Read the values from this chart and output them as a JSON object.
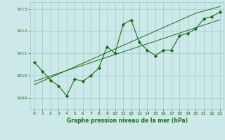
{
  "bg_color": "#cce8e8",
  "grid_color": "#99cccc",
  "line_color": "#1a6e1a",
  "marker_color": "#1a6e1a",
  "xlabel": "Graphe pression niveau de la mer (hPa)",
  "xlim": [
    -0.5,
    23.5
  ],
  "ylim": [
    1008.5,
    1013.3
  ],
  "yticks": [
    1009,
    1010,
    1011,
    1012,
    1013
  ],
  "xticks": [
    0,
    1,
    2,
    3,
    4,
    5,
    6,
    7,
    8,
    9,
    10,
    11,
    12,
    13,
    14,
    15,
    16,
    17,
    18,
    19,
    20,
    21,
    22,
    23
  ],
  "series_main": [
    1010.6,
    1010.2,
    1009.8,
    1009.55,
    1009.1,
    1009.85,
    1009.75,
    1010.0,
    1010.35,
    1011.3,
    1011.0,
    1012.3,
    1012.5,
    1011.5,
    1011.15,
    1010.9,
    1011.15,
    1011.15,
    1011.8,
    1011.9,
    1012.1,
    1012.55,
    1012.65,
    1012.85
  ],
  "series_trend1": [
    1009.6,
    1009.76,
    1009.92,
    1010.08,
    1010.24,
    1010.4,
    1010.56,
    1010.72,
    1010.88,
    1011.04,
    1011.2,
    1011.36,
    1011.52,
    1011.68,
    1011.84,
    1012.0,
    1012.16,
    1012.32,
    1012.48,
    1012.64,
    1012.8,
    1012.9,
    1013.0,
    1013.1
  ],
  "series_trend2": [
    1009.75,
    1009.87,
    1009.99,
    1010.11,
    1010.23,
    1010.35,
    1010.47,
    1010.59,
    1010.71,
    1010.83,
    1010.95,
    1011.07,
    1011.19,
    1011.31,
    1011.43,
    1011.55,
    1011.67,
    1011.79,
    1011.91,
    1012.03,
    1012.15,
    1012.27,
    1012.39,
    1012.51
  ]
}
